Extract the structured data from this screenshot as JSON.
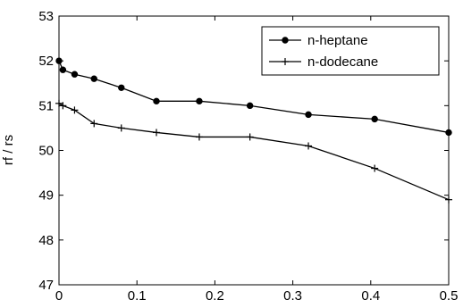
{
  "chart_data": {
    "type": "line",
    "title": "",
    "xlabel": "",
    "ylabel": "rf / rs",
    "xlim": [
      0,
      0.5
    ],
    "ylim": [
      47,
      53
    ],
    "xticks": [
      0,
      0.1,
      0.2,
      0.3,
      0.4,
      0.5
    ],
    "yticks": [
      47,
      48,
      49,
      50,
      51,
      52,
      53
    ],
    "xtick_labels": [
      "0",
      "0.1",
      "0.2",
      "0.3",
      "0.4",
      "0.5"
    ],
    "ytick_labels": [
      "47",
      "48",
      "49",
      "50",
      "51",
      "52",
      "53"
    ],
    "grid": false,
    "legend_position": "top-right",
    "series": [
      {
        "name": "n-heptane",
        "marker": "dot",
        "color": "#000000",
        "x": [
          0,
          0.005,
          0.02,
          0.045,
          0.08,
          0.125,
          0.18,
          0.245,
          0.32,
          0.405,
          0.5
        ],
        "y": [
          52.0,
          51.8,
          51.7,
          51.6,
          51.4,
          51.1,
          51.1,
          51.0,
          50.8,
          50.7,
          50.4
        ]
      },
      {
        "name": "n-dodecane",
        "marker": "plus",
        "color": "#000000",
        "x": [
          0,
          0.005,
          0.02,
          0.045,
          0.08,
          0.125,
          0.18,
          0.245,
          0.32,
          0.405,
          0.5
        ],
        "y": [
          51.05,
          51.0,
          50.9,
          50.6,
          50.5,
          50.4,
          50.3,
          50.3,
          50.1,
          49.6,
          48.9
        ]
      }
    ]
  }
}
